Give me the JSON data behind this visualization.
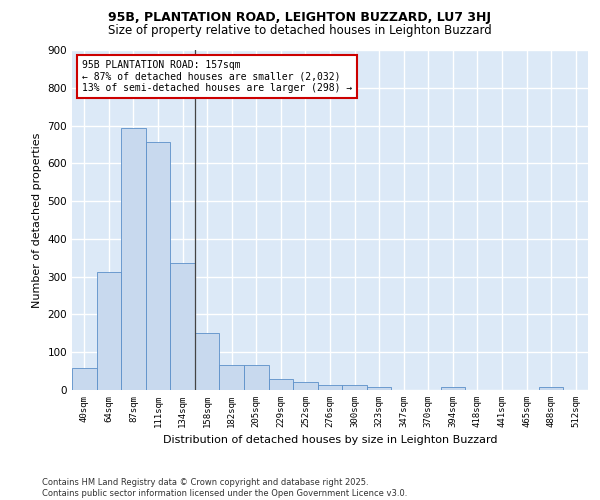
{
  "title": "95B, PLANTATION ROAD, LEIGHTON BUZZARD, LU7 3HJ",
  "subtitle": "Size of property relative to detached houses in Leighton Buzzard",
  "xlabel": "Distribution of detached houses by size in Leighton Buzzard",
  "ylabel": "Number of detached properties",
  "bar_color": "#c8d9ee",
  "bar_edge_color": "#5b8fc9",
  "background_color": "#dce9f7",
  "categories": [
    "40sqm",
    "64sqm",
    "87sqm",
    "111sqm",
    "134sqm",
    "158sqm",
    "182sqm",
    "205sqm",
    "229sqm",
    "252sqm",
    "276sqm",
    "300sqm",
    "323sqm",
    "347sqm",
    "370sqm",
    "394sqm",
    "418sqm",
    "441sqm",
    "465sqm",
    "488sqm",
    "512sqm"
  ],
  "values": [
    58,
    312,
    693,
    657,
    335,
    152,
    65,
    65,
    30,
    20,
    12,
    12,
    9,
    0,
    0,
    7,
    0,
    0,
    0,
    7,
    0
  ],
  "ylim": [
    0,
    900
  ],
  "yticks": [
    0,
    100,
    200,
    300,
    400,
    500,
    600,
    700,
    800,
    900
  ],
  "annotation_text": "95B PLANTATION ROAD: 157sqm\n← 87% of detached houses are smaller (2,032)\n13% of semi-detached houses are larger (298) →",
  "annotation_box_color": "#ffffff",
  "annotation_box_edge_color": "#cc0000",
  "footnote": "Contains HM Land Registry data © Crown copyright and database right 2025.\nContains public sector information licensed under the Open Government Licence v3.0.",
  "vline_x": 4.5,
  "grid_color": "#ffffff",
  "grid_linewidth": 1.0
}
